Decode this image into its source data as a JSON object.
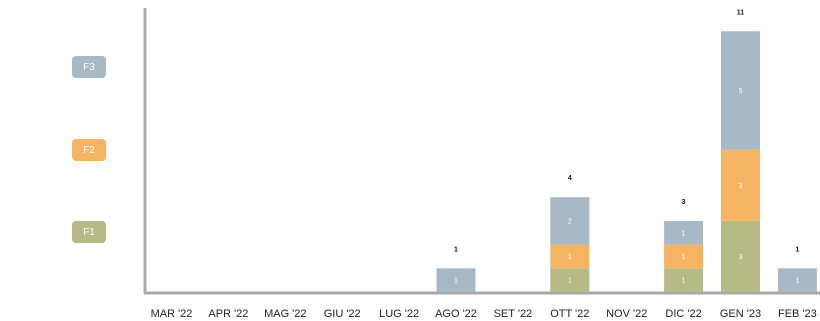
{
  "chart_data": {
    "type": "bar",
    "stacked": true,
    "categories": [
      "MAR '22",
      "APR '22",
      "MAG '22",
      "GIU '22",
      "LUG '22",
      "AGO '22",
      "SET '22",
      "OTT '22",
      "NOV '22",
      "DIC '22",
      "GEN '23",
      "FEB '23"
    ],
    "series": [
      {
        "name": "F1",
        "color": "#b6ba84",
        "values": [
          0,
          0,
          0,
          0,
          0,
          0,
          0,
          1,
          0,
          1,
          3,
          0
        ]
      },
      {
        "name": "F2",
        "color": "#f5b462",
        "values": [
          0,
          0,
          0,
          0,
          0,
          0,
          0,
          1,
          0,
          1,
          3,
          0
        ]
      },
      {
        "name": "F3",
        "color": "#a6b9c4",
        "values": [
          0,
          0,
          0,
          0,
          0,
          1,
          0,
          2,
          0,
          1,
          5,
          1
        ]
      }
    ],
    "totals": [
      0,
      0,
      0,
      0,
      0,
      1,
      0,
      4,
      0,
      3,
      11,
      1
    ],
    "ylim": [
      0,
      11
    ],
    "legend_position": "left",
    "grid": false
  }
}
